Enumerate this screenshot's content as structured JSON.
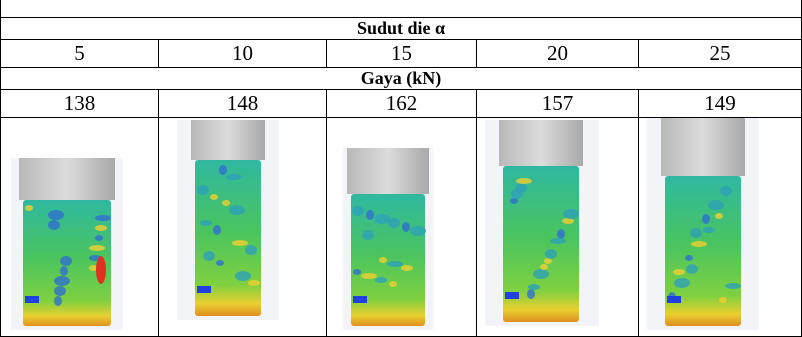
{
  "table": {
    "angle_header": "Sudut die α",
    "angles": [
      5,
      10,
      15,
      20,
      25
    ],
    "force_header": "Gaya (kN)",
    "forces": [
      138,
      148,
      162,
      157,
      149
    ]
  }
}
